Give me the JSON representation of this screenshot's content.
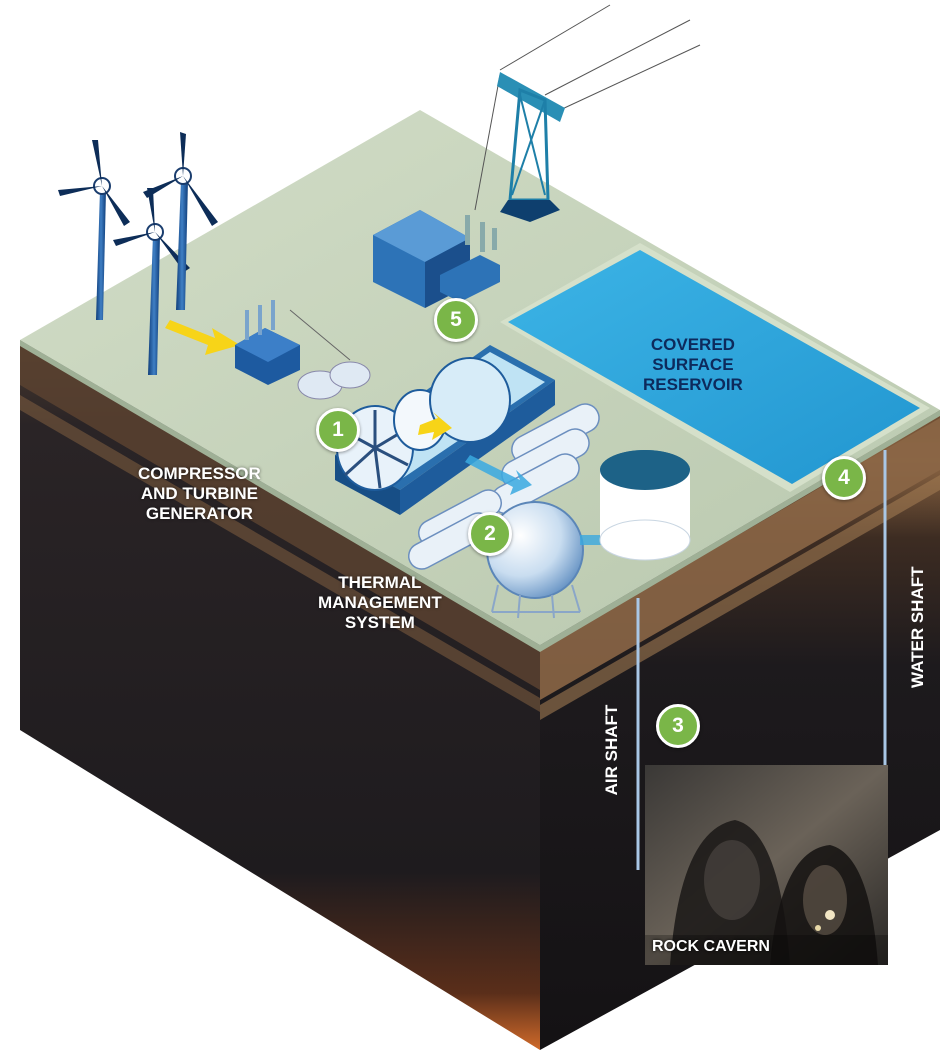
{
  "labels": {
    "compressor_line1": "COMPRESSOR",
    "compressor_line2": "AND TURBINE",
    "compressor_line3": "GENERATOR",
    "thermal_line1": "THERMAL",
    "thermal_line2": "MANAGEMENT",
    "thermal_line3": "SYSTEM",
    "reservoir_line1": "COVERED",
    "reservoir_line2": "SURFACE",
    "reservoir_line3": "RESERVOIR",
    "air_shaft": "AIR SHAFT",
    "water_shaft": "WATER SHAFT",
    "rock_cavern": "ROCK CAVERN"
  },
  "badges": [
    "1",
    "2",
    "3",
    "4",
    "5"
  ],
  "colors": {
    "badge_green": "#7ab648",
    "surface": "#c9d6bf",
    "reservoir": "#2fa6de",
    "ground_dark": "#1c1a1c",
    "soil_brown": "#6b4a33",
    "equipment_blue": "#2a6fae",
    "label_text": "#ffffff"
  },
  "icons": {
    "wind_turbines": "wind-turbine-icon",
    "transmission_tower": "transmission-tower-icon",
    "substation": "substation-building-icon",
    "transformer": "transformer-icon",
    "compressor": "compressor-turbine-icon",
    "thermal_tanks": "thermal-tank-icon",
    "cavern": "rock-cavern-image"
  }
}
